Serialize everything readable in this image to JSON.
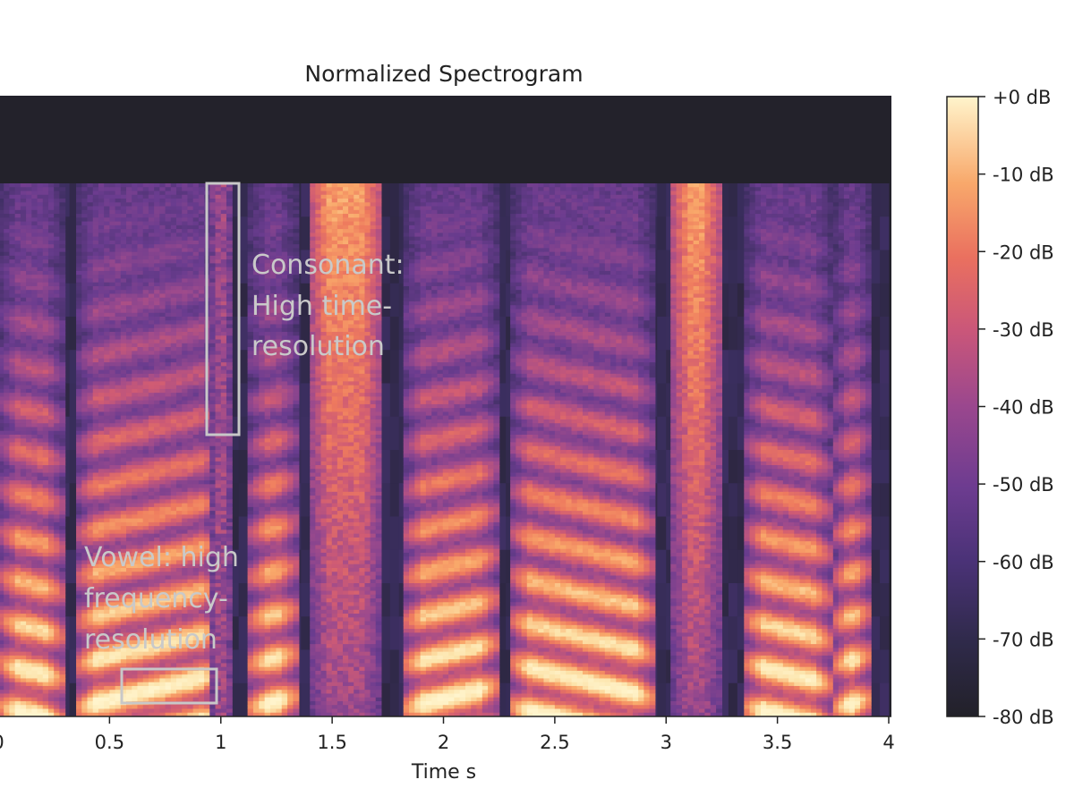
{
  "chart_data": {
    "type": "heatmap",
    "title": "Normalized Spectrogram",
    "xlabel": "Time s",
    "ylabel": "",
    "xlim": [
      0,
      4
    ],
    "x_ticks": [
      0,
      0.5,
      1,
      1.5,
      2,
      2.5,
      3,
      3.5,
      4
    ],
    "x_tick_labels": [
      "0",
      "0.5",
      "1",
      "1.5",
      "2",
      "2.5",
      "3",
      "3.5",
      "4"
    ],
    "colorbar": {
      "range_db": [
        -80,
        0
      ],
      "ticks": [
        0,
        -10,
        -20,
        -30,
        -40,
        -50,
        -60,
        -70,
        -80
      ],
      "tick_labels": [
        "+0 dB",
        "-10 dB",
        "-20 dB",
        "-30 dB",
        "-40 dB",
        "-50 dB",
        "-60 dB",
        "-70 dB",
        "-80 dB"
      ],
      "colormap": "magma",
      "colors": [
        "#222129",
        "#3a2e5e",
        "#6a3c8f",
        "#9c4a8d",
        "#cf5b74",
        "#ee7a5e",
        "#f9a86a",
        "#fce2a8",
        "#fff4cc"
      ]
    },
    "segments": [
      {
        "start": 0.0,
        "end": 0.3,
        "kind": "vowel"
      },
      {
        "start": 0.35,
        "end": 1.0,
        "kind": "vowel"
      },
      {
        "start": 0.95,
        "end": 1.05,
        "kind": "consonant"
      },
      {
        "start": 1.12,
        "end": 1.35,
        "kind": "vowel"
      },
      {
        "start": 1.4,
        "end": 1.72,
        "kind": "fricative"
      },
      {
        "start": 1.82,
        "end": 2.25,
        "kind": "vowel"
      },
      {
        "start": 2.3,
        "end": 2.95,
        "kind": "vowel"
      },
      {
        "start": 3.02,
        "end": 3.25,
        "kind": "fricative"
      },
      {
        "start": 3.35,
        "end": 3.75,
        "kind": "vowel"
      },
      {
        "start": 3.75,
        "end": 3.92,
        "kind": "vowel"
      }
    ],
    "annotations": [
      {
        "id": "consonant",
        "lines": [
          "Consonant:",
          "High time-",
          "resolution"
        ],
        "box_time": [
          0.95,
          1.09
        ]
      },
      {
        "id": "vowel",
        "lines": [
          "Vowel: high",
          "frequency-",
          "resolution"
        ],
        "box_time": [
          0.56,
          0.99
        ]
      }
    ]
  }
}
